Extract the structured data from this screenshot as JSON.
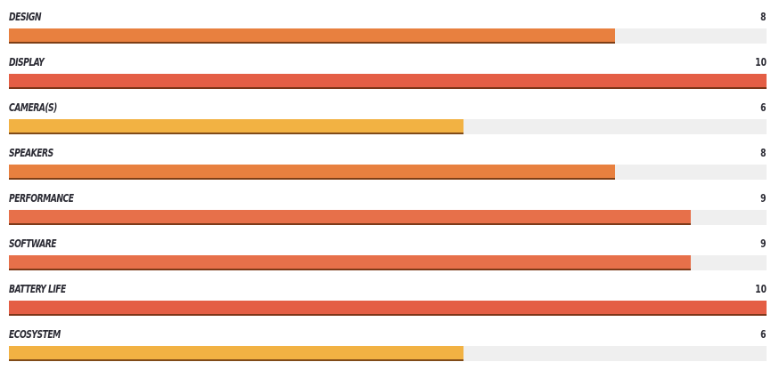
{
  "max_score": 10,
  "ratings": [
    {
      "label": "DESIGN",
      "score": "8",
      "value": 8,
      "color": "#e8803f"
    },
    {
      "label": "DISPLAY",
      "score": "10",
      "value": 10,
      "color": "#e45e45"
    },
    {
      "label": "CAMERA(S)",
      "score": "6",
      "value": 6,
      "color": "#f2b243"
    },
    {
      "label": "SPEAKERS",
      "score": "8",
      "value": 8,
      "color": "#e8803f"
    },
    {
      "label": "PERFORMANCE",
      "score": "9",
      "value": 9,
      "color": "#e7704a"
    },
    {
      "label": "SOFTWARE",
      "score": "9",
      "value": 9,
      "color": "#e7704a"
    },
    {
      "label": "BATTERY LIFE",
      "score": "10",
      "value": 10,
      "color": "#e45e45"
    },
    {
      "label": "ECOSYSTEM",
      "score": "6",
      "value": 6,
      "color": "#f2b243"
    }
  ]
}
